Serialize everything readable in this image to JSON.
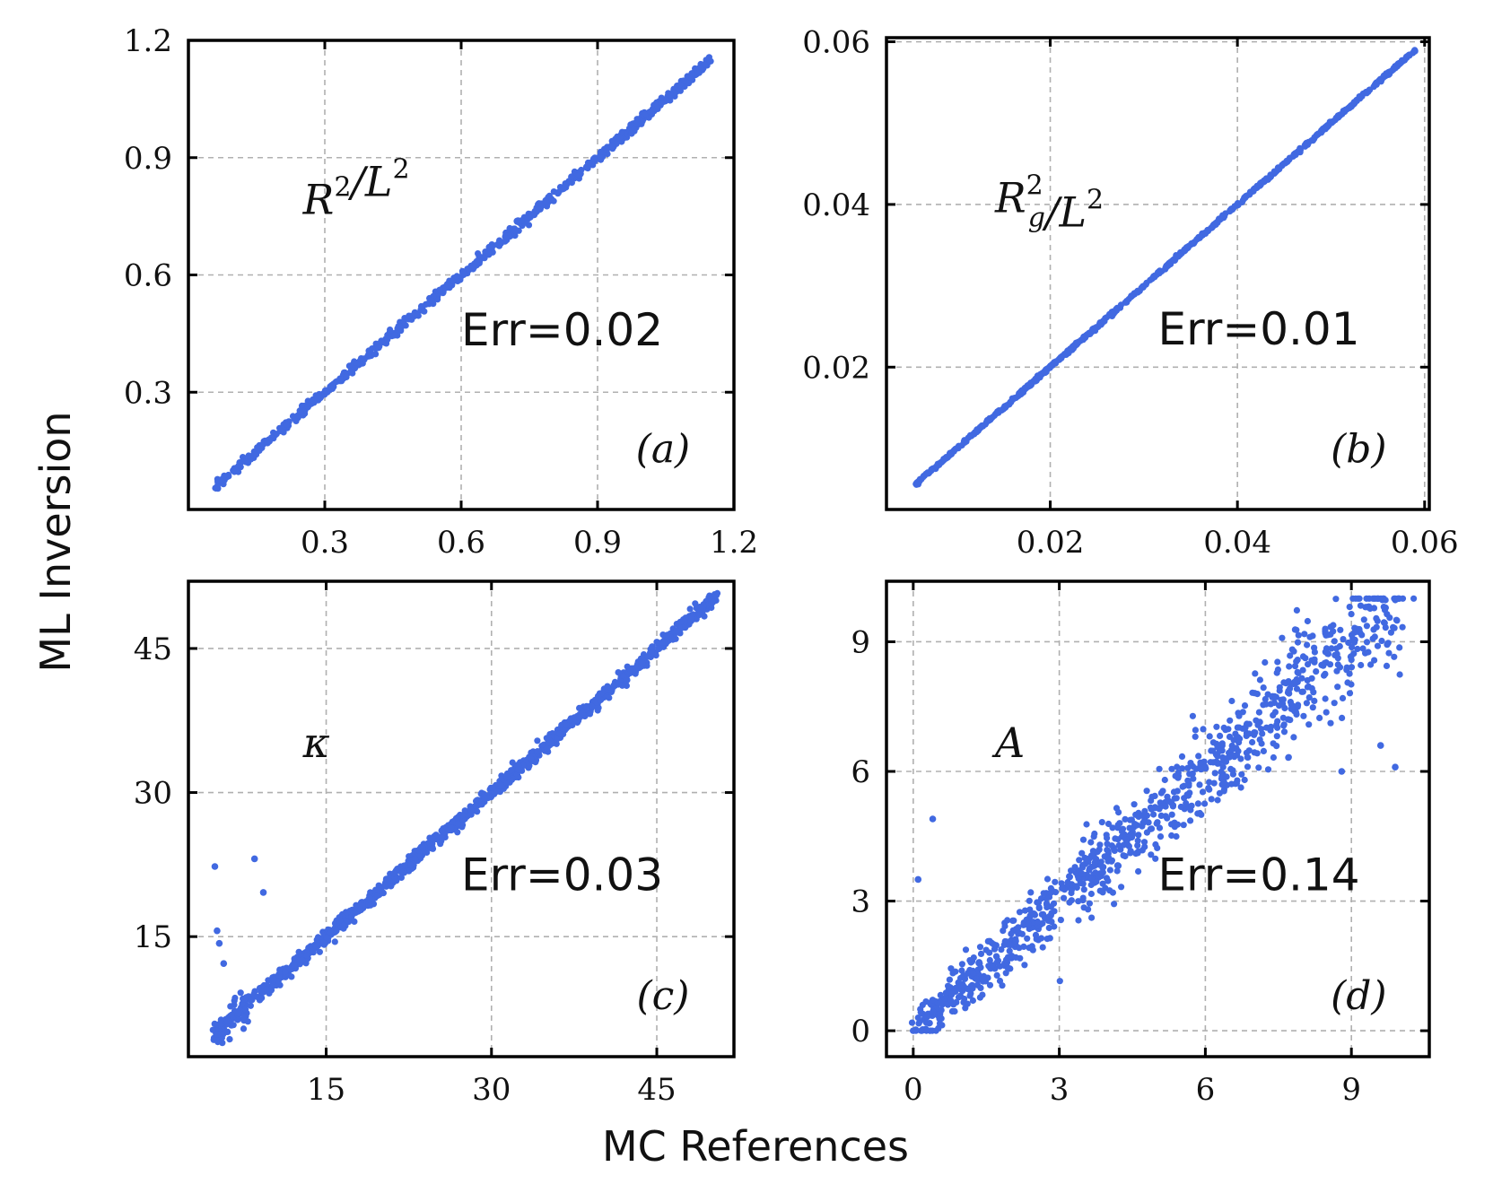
{
  "figure": {
    "xlabel": "MC References",
    "ylabel": "ML Inversion",
    "point_color": "#4169e1"
  },
  "chart_data": [
    {
      "panel": "a",
      "type": "scatter",
      "label_base": "R",
      "label_sup": "2",
      "label_sub": "",
      "label_tail": "/L",
      "label_tail_sup": "2",
      "err_text": "Err=0.02",
      "panel_label": "(a)",
      "xlim": [
        0.0,
        1.2
      ],
      "ylim": [
        0.0,
        1.2
      ],
      "xticks": [
        0.3,
        0.6,
        0.9,
        1.2
      ],
      "yticks": [
        0.3,
        0.6,
        0.9,
        1.2
      ],
      "xtick_labels": [
        "0.3",
        "0.6",
        "0.9",
        "1.2"
      ],
      "ytick_labels": [
        "0.3",
        "0.6",
        "0.9",
        "1.2"
      ],
      "data_range": [
        0.06,
        1.15
      ],
      "noise": 0.006,
      "n_points": 700
    },
    {
      "panel": "b",
      "type": "scatter",
      "label_base": "R",
      "label_sup": "2",
      "label_sub": "g",
      "label_tail": "/L",
      "label_tail_sup": "2",
      "err_text": "Err=0.01",
      "panel_label": "(b)",
      "xlim": [
        0.0025,
        0.0605
      ],
      "ylim": [
        0.0025,
        0.0605
      ],
      "xticks": [
        0.02,
        0.04,
        0.06
      ],
      "yticks": [
        0.02,
        0.04,
        0.06
      ],
      "xtick_labels": [
        "0.02",
        "0.04",
        "0.06"
      ],
      "ytick_labels": [
        "0.02",
        "0.04",
        "0.06"
      ],
      "data_range": [
        0.0055,
        0.059
      ],
      "noise": 0.0001,
      "n_points": 700
    },
    {
      "panel": "c",
      "type": "scatter",
      "label_base": "κ",
      "label_sup": "",
      "label_sub": "",
      "label_tail": "",
      "label_tail_sup": "",
      "err_text": "Err=0.03",
      "panel_label": "(c)",
      "xlim": [
        2.5,
        52.0
      ],
      "ylim": [
        2.5,
        52.0
      ],
      "xticks": [
        15,
        30,
        45
      ],
      "yticks": [
        15,
        30,
        45
      ],
      "xtick_labels": [
        "15",
        "30",
        "45"
      ],
      "ytick_labels": [
        "15",
        "30",
        "45"
      ],
      "data_range": [
        4.8,
        50.5
      ],
      "noise": 0.35,
      "n_points": 1100,
      "outliers": [
        [
          4.9,
          22.3
        ],
        [
          5.1,
          15.6
        ],
        [
          5.3,
          14.3
        ],
        [
          5.7,
          12.2
        ],
        [
          8.5,
          23.1
        ],
        [
          9.3,
          19.6
        ]
      ]
    },
    {
      "panel": "d",
      "type": "scatter",
      "label_base": "A",
      "label_sup": "",
      "label_sub": "",
      "label_tail": "",
      "label_tail_sup": "",
      "err_text": "Err=0.14",
      "panel_label": "(d)",
      "xlim": [
        -0.55,
        10.6
      ],
      "ylim": [
        -0.6,
        10.4
      ],
      "xticks": [
        0,
        3,
        6,
        9
      ],
      "yticks": [
        0,
        3,
        6,
        9
      ],
      "xtick_labels": [
        "0",
        "3",
        "6",
        "9"
      ],
      "ytick_labels": [
        "0",
        "3",
        "6",
        "9"
      ],
      "data_range": [
        0.0,
        10.0
      ],
      "noise": 0.42,
      "n_points": 950,
      "outliers": [
        [
          0.1,
          3.5
        ],
        [
          0.4,
          4.9
        ],
        [
          8.8,
          6.0
        ],
        [
          9.9,
          6.1
        ],
        [
          9.6,
          6.6
        ]
      ]
    }
  ]
}
